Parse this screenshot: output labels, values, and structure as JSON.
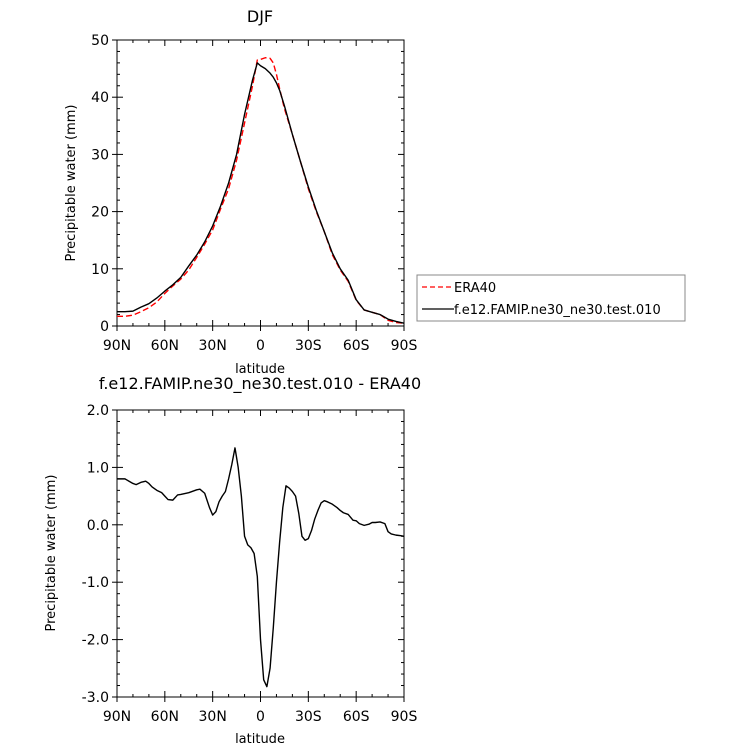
{
  "colors": {
    "era40": "#ff0000",
    "model": "#000000",
    "axis": "#000000"
  },
  "chart_data": [
    {
      "type": "line",
      "title": "DJF",
      "xlabel": "latitude",
      "ylabel": "Precipitable water (mm)",
      "xlim": [
        90,
        -90
      ],
      "ylim": [
        0,
        50
      ],
      "x_tick_values": [
        90,
        60,
        30,
        0,
        -30,
        -60,
        -90
      ],
      "x_tick_labels": [
        "90N",
        "60N",
        "30N",
        "0",
        "30S",
        "60S",
        "90S"
      ],
      "y_tick_values": [
        0,
        10,
        20,
        30,
        40,
        50
      ],
      "y_tick_labels": [
        "0",
        "10",
        "20",
        "30",
        "40",
        "50"
      ],
      "legend": "right",
      "series": [
        {
          "name": "ERA40",
          "style": "dashed",
          "color": "#ff0000",
          "x": [
            90,
            85,
            80,
            75,
            70,
            65,
            60,
            55,
            50,
            45,
            40,
            35,
            30,
            25,
            20,
            15,
            10,
            5,
            2,
            0,
            -3,
            -6,
            -8,
            -10,
            -12,
            -15,
            -20,
            -25,
            -30,
            -35,
            -40,
            -45,
            -50,
            -55,
            -60,
            -65,
            -70,
            -75,
            -80,
            -85,
            -90
          ],
          "values": [
            1.7,
            1.7,
            1.9,
            2.5,
            3.2,
            4.2,
            5.7,
            7.0,
            8.2,
            9.8,
            12.0,
            14.3,
            16.8,
            20.5,
            24.0,
            29.0,
            35.5,
            42.0,
            46.5,
            46.6,
            46.9,
            46.8,
            46.0,
            44.0,
            41.5,
            38.0,
            33.5,
            28.8,
            24.0,
            20.0,
            16.5,
            12.5,
            9.8,
            7.8,
            4.5,
            2.8,
            2.4,
            2.0,
            1.0,
            0.6,
            0.5
          ]
        },
        {
          "name": "f.e12.FAMIP.ne30_ne30.test.010",
          "style": "solid",
          "color": "#000000",
          "x": [
            90,
            85,
            80,
            75,
            70,
            65,
            60,
            55,
            50,
            45,
            40,
            35,
            30,
            25,
            20,
            15,
            10,
            5,
            2,
            0,
            -3,
            -6,
            -8,
            -10,
            -12,
            -15,
            -20,
            -25,
            -30,
            -35,
            -40,
            -45,
            -50,
            -55,
            -60,
            -65,
            -70,
            -75,
            -80,
            -85,
            -90
          ],
          "values": [
            2.5,
            2.5,
            2.6,
            3.3,
            3.9,
            4.9,
            6.1,
            7.2,
            8.5,
            10.5,
            12.4,
            14.7,
            17.5,
            21.0,
            25.0,
            30.0,
            37.0,
            43.0,
            46.0,
            45.5,
            45.0,
            44.2,
            43.5,
            42.5,
            41.2,
            38.5,
            33.5,
            28.8,
            24.3,
            20.2,
            16.5,
            12.8,
            10.0,
            8.0,
            4.6,
            2.8,
            2.4,
            2.0,
            1.2,
            0.8,
            0.5
          ]
        }
      ]
    },
    {
      "type": "line",
      "title": "f.e12.FAMIP.ne30_ne30.test.010 - ERA40",
      "xlabel": "latitude",
      "ylabel": "Precipitable water (mm)",
      "xlim": [
        90,
        -90
      ],
      "ylim": [
        -3.0,
        2.0
      ],
      "x_tick_values": [
        90,
        60,
        30,
        0,
        -30,
        -60,
        -90
      ],
      "x_tick_labels": [
        "90N",
        "60N",
        "30N",
        "0",
        "30S",
        "60S",
        "90S"
      ],
      "y_tick_values": [
        -3.0,
        -2.0,
        -1.0,
        0.0,
        1.0,
        2.0
      ],
      "y_tick_labels": [
        "-3.0",
        "-2.0",
        "-1.0",
        "0.0",
        "1.0",
        "2.0"
      ],
      "series": [
        {
          "style": "solid",
          "color": "#000000",
          "x": [
            90,
            85,
            80,
            78,
            75,
            72,
            70,
            68,
            65,
            62,
            60,
            58,
            55,
            52,
            50,
            45,
            40,
            38,
            35,
            32,
            30,
            28,
            26,
            24,
            22,
            20,
            18,
            16,
            14,
            12,
            10,
            8,
            6,
            4,
            2,
            0,
            -2,
            -4,
            -6,
            -8,
            -10,
            -12,
            -14,
            -16,
            -18,
            -20,
            -22,
            -24,
            -26,
            -28,
            -30,
            -32,
            -34,
            -36,
            -38,
            -40,
            -42,
            -45,
            -48,
            -50,
            -52,
            -55,
            -58,
            -60,
            -62,
            -65,
            -68,
            -70,
            -72,
            -75,
            -78,
            -80,
            -82,
            -85,
            -88,
            -90
          ],
          "values": [
            0.8,
            0.8,
            0.72,
            0.7,
            0.74,
            0.76,
            0.72,
            0.66,
            0.6,
            0.56,
            0.5,
            0.44,
            0.43,
            0.52,
            0.53,
            0.56,
            0.61,
            0.62,
            0.55,
            0.3,
            0.17,
            0.23,
            0.4,
            0.5,
            0.58,
            0.8,
            1.05,
            1.34,
            1.0,
            0.5,
            -0.2,
            -0.35,
            -0.4,
            -0.5,
            -0.9,
            -2.0,
            -2.7,
            -2.82,
            -2.5,
            -1.8,
            -1.0,
            -0.3,
            0.3,
            0.68,
            0.64,
            0.58,
            0.5,
            0.2,
            -0.2,
            -0.27,
            -0.24,
            -0.1,
            0.1,
            0.25,
            0.38,
            0.42,
            0.4,
            0.36,
            0.3,
            0.25,
            0.21,
            0.18,
            0.08,
            0.07,
            0.02,
            -0.01,
            0.01,
            0.04,
            0.04,
            0.05,
            0.02,
            -0.12,
            -0.16,
            -0.18,
            -0.19,
            -0.2
          ]
        }
      ]
    }
  ]
}
